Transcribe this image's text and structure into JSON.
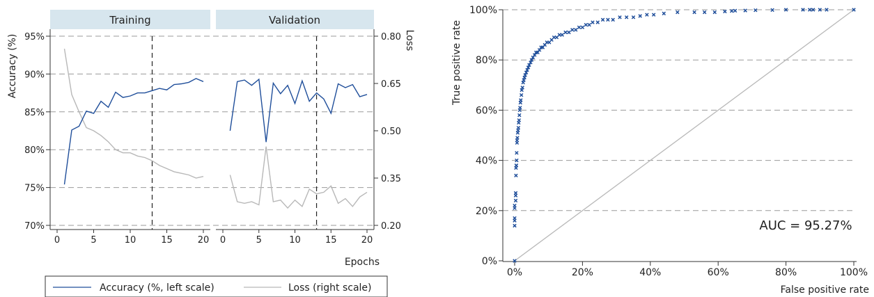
{
  "colors": {
    "accuracy": "#1f4e9a",
    "loss": "#b8b8b8",
    "strip": "#d7e6ee",
    "strip_text": "#3a56a8",
    "grid": "#9a9a9a",
    "roc_points": "#1f4e9a",
    "diagonal": "#b8b8b8"
  },
  "chart_data": [
    {
      "type": "line",
      "panel": "Training",
      "x": [
        1,
        2,
        3,
        4,
        5,
        6,
        7,
        8,
        9,
        10,
        11,
        12,
        13,
        14,
        15,
        16,
        17,
        18,
        19,
        20
      ],
      "series": [
        {
          "name": "Accuracy (%, left scale)",
          "axis": "left",
          "values": [
            75.4,
            82.6,
            83.1,
            85.1,
            84.8,
            86.4,
            85.6,
            87.6,
            86.9,
            87.1,
            87.5,
            87.5,
            87.8,
            88.1,
            87.9,
            88.6,
            88.7,
            88.9,
            89.4,
            89.0
          ]
        },
        {
          "name": "Loss (right scale)",
          "axis": "right",
          "values": [
            0.76,
            0.615,
            0.56,
            0.51,
            0.5,
            0.485,
            0.465,
            0.44,
            0.43,
            0.43,
            0.42,
            0.415,
            0.405,
            0.39,
            0.38,
            0.37,
            0.365,
            0.36,
            0.35,
            0.355
          ]
        }
      ],
      "vline": 13
    },
    {
      "type": "line",
      "panel": "Validation",
      "x": [
        1,
        2,
        3,
        4,
        5,
        6,
        7,
        8,
        9,
        10,
        11,
        12,
        13,
        14,
        15,
        16,
        17,
        18,
        19,
        20
      ],
      "series": [
        {
          "name": "Accuracy (%, left scale)",
          "axis": "left",
          "values": [
            82.5,
            89.0,
            89.2,
            88.5,
            89.3,
            81.0,
            88.8,
            87.4,
            88.5,
            86.1,
            89.1,
            86.4,
            87.5,
            86.7,
            84.8,
            88.7,
            88.2,
            88.6,
            87.0,
            87.3
          ]
        },
        {
          "name": "Loss (right scale)",
          "axis": "right",
          "values": [
            0.36,
            0.275,
            0.27,
            0.275,
            0.265,
            0.45,
            0.275,
            0.28,
            0.255,
            0.28,
            0.26,
            0.315,
            0.3,
            0.305,
            0.325,
            0.27,
            0.285,
            0.26,
            0.29,
            0.305
          ]
        }
      ],
      "vline": 13
    },
    {
      "type": "scatter",
      "xlabel": "False positive rate",
      "ylabel": "True positive rate",
      "xlim": [
        0,
        100
      ],
      "ylim": [
        0,
        100
      ],
      "xticks": [
        "0%",
        "20%",
        "40%",
        "60%",
        "80%",
        "100%"
      ],
      "yticks": [
        "0%",
        "20%",
        "40%",
        "60%",
        "80%",
        "100%"
      ],
      "annotation": "AUC = 95.27%",
      "diagonal": true,
      "x": [
        0,
        0,
        0,
        0,
        0,
        0,
        0.3,
        0.3,
        0.3,
        0.4,
        0.4,
        0.5,
        0.5,
        0.6,
        0.6,
        0.7,
        0.7,
        0.8,
        0.9,
        1.0,
        1.1,
        1.2,
        1.3,
        1.4,
        1.5,
        1.6,
        1.7,
        1.8,
        2.0,
        2.1,
        2.3,
        2.5,
        2.7,
        2.9,
        3.1,
        3.4,
        3.7,
        4.0,
        4.3,
        4.7,
        5.0,
        5.4,
        5.9,
        6.3,
        6.8,
        7.3,
        7.8,
        8.3,
        8.9,
        9.5,
        10.2,
        10.9,
        11.6,
        12.4,
        13.2,
        14.0,
        15.0,
        16.0,
        17.0,
        18.0,
        19.0,
        20.0,
        21.0,
        22.0,
        23.0,
        24.5,
        26.0,
        27.5,
        29.0,
        31.0,
        33.0,
        35.0,
        37.0,
        39.0,
        41.0,
        44.0,
        48.0,
        53.0,
        56.0,
        59.0,
        62.0,
        64.0,
        65.0,
        68.0,
        71.0,
        76.0,
        80.0,
        85.0,
        87.0,
        88.0,
        90.0,
        92.0,
        100.0
      ],
      "y": [
        0,
        14,
        16,
        17,
        21,
        22,
        24,
        26,
        27,
        34,
        37,
        38,
        38,
        40,
        43,
        47,
        48,
        49,
        51,
        52,
        53,
        55,
        56,
        58,
        60,
        61,
        63,
        64,
        66,
        68,
        69,
        71,
        72,
        73,
        74,
        75,
        76,
        77,
        78,
        79,
        80,
        81,
        82,
        83,
        83,
        84,
        85,
        85,
        86,
        87,
        87,
        88,
        89,
        89,
        90,
        90,
        91,
        91,
        92,
        92,
        93,
        93,
        94,
        94,
        95,
        95,
        96,
        96,
        96,
        97,
        97,
        97,
        97.5,
        98,
        98,
        98.5,
        99,
        99,
        99,
        99,
        99.3,
        99.5,
        99.6,
        99.7,
        99.8,
        99.9,
        100,
        100,
        100,
        100,
        100,
        100,
        100
      ]
    }
  ],
  "panel_labels": {
    "training": "Training",
    "validation": "Validation"
  },
  "left_axis": {
    "label": "Accuracy (%)",
    "ticks": [
      "70%",
      "75%",
      "80%",
      "85%",
      "90%",
      "95%"
    ]
  },
  "right_axis": {
    "label": "Loss",
    "ticks": [
      "0.20",
      "0.35",
      "0.50",
      "0.65",
      "0.80"
    ]
  },
  "x_axis": {
    "label": "Epochs",
    "ticks": [
      "0",
      "5",
      "10",
      "15",
      "20"
    ]
  },
  "legend": {
    "accuracy": "Accuracy (%, left scale)",
    "loss": "Loss (right scale)"
  },
  "roc": {
    "xlabel": "False positive rate",
    "ylabel": "True positive rate",
    "annotation": "AUC = 95.27%"
  }
}
